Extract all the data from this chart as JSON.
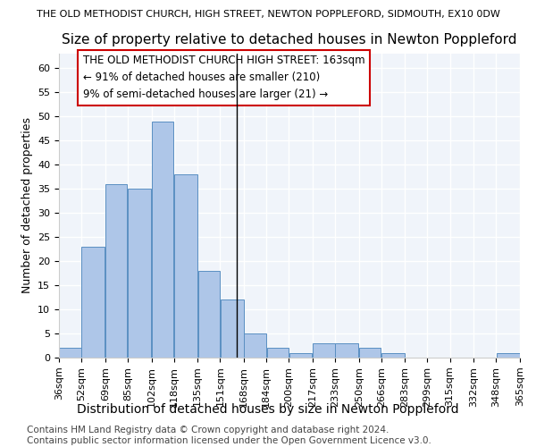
{
  "super_title": "THE OLD METHODIST CHURCH, HIGH STREET, NEWTON POPPLEFORD, SIDMOUTH, EX10 0DW",
  "title": "Size of property relative to detached houses in Newton Poppleford",
  "xlabel": "Distribution of detached houses by size in Newton Poppleford",
  "ylabel": "Number of detached properties",
  "footer_line1": "Contains HM Land Registry data © Crown copyright and database right 2024.",
  "footer_line2": "Contains public sector information licensed under the Open Government Licence v3.0.",
  "annotation_line1": "THE OLD METHODIST CHURCH HIGH STREET: 163sqm",
  "annotation_line2": "← 91% of detached houses are smaller (210)",
  "annotation_line3": "9% of semi-detached houses are larger (21) →",
  "property_size": 163,
  "bar_edges": [
    36,
    52,
    69,
    85,
    102,
    118,
    135,
    151,
    168,
    184,
    200,
    217,
    233,
    250,
    266,
    283,
    299,
    315,
    332,
    348,
    365
  ],
  "bar_heights": [
    2,
    23,
    36,
    35,
    49,
    38,
    18,
    12,
    5,
    2,
    1,
    3,
    3,
    2,
    1,
    0,
    0,
    0,
    0,
    1
  ],
  "bar_color": "#aec6e8",
  "bar_edge_color": "#5a8fc2",
  "vline_color": "#000000",
  "vline_x": 163,
  "annotation_box_edge_color": "#cc0000",
  "ylim": [
    0,
    63
  ],
  "yticks": [
    0,
    5,
    10,
    15,
    20,
    25,
    30,
    35,
    40,
    45,
    50,
    55,
    60
  ],
  "background_color": "#f0f4fa",
  "grid_color": "#ffffff",
  "super_title_fontsize": 8,
  "title_fontsize": 11,
  "xlabel_fontsize": 10,
  "ylabel_fontsize": 9,
  "tick_fontsize": 8,
  "annotation_fontsize": 8.5,
  "footer_fontsize": 7.5
}
